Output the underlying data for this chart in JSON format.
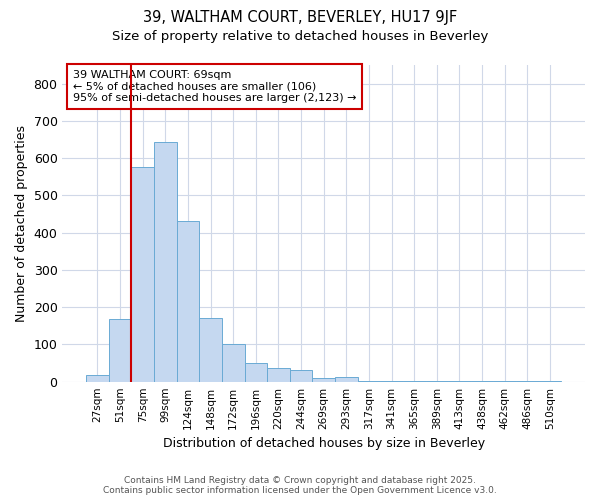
{
  "title1": "39, WALTHAM COURT, BEVERLEY, HU17 9JF",
  "title2": "Size of property relative to detached houses in Beverley",
  "xlabel": "Distribution of detached houses by size in Beverley",
  "ylabel": "Number of detached properties",
  "annotation_title": "39 WALTHAM COURT: 69sqm",
  "annotation_line1": "← 5% of detached houses are smaller (106)",
  "annotation_line2": "95% of semi-detached houses are larger (2,123) →",
  "footer1": "Contains HM Land Registry data © Crown copyright and database right 2025.",
  "footer2": "Contains public sector information licensed under the Open Government Licence v3.0.",
  "categories": [
    "27sqm",
    "51sqm",
    "75sqm",
    "99sqm",
    "124sqm",
    "148sqm",
    "172sqm",
    "196sqm",
    "220sqm",
    "244sqm",
    "269sqm",
    "293sqm",
    "317sqm",
    "341sqm",
    "365sqm",
    "389sqm",
    "413sqm",
    "438sqm",
    "462sqm",
    "486sqm",
    "510sqm"
  ],
  "values": [
    18,
    168,
    575,
    642,
    430,
    170,
    100,
    50,
    38,
    32,
    10,
    12,
    3,
    1,
    1,
    1,
    1,
    1,
    1,
    1,
    2
  ],
  "bar_color": "#c5d8f0",
  "bar_edge_color": "#6aaad4",
  "vline_x": 1.5,
  "vline_color": "#cc0000",
  "annotation_box_color": "#cc0000",
  "ylim": [
    0,
    850
  ],
  "yticks": [
    0,
    100,
    200,
    300,
    400,
    500,
    600,
    700,
    800
  ],
  "bg_color": "#ffffff",
  "plot_bg_color": "#ffffff",
  "grid_color": "#d0d8e8"
}
